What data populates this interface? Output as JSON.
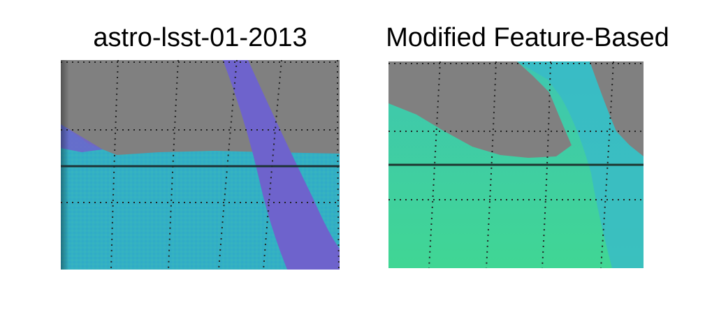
{
  "panels": [
    {
      "title": "astro-lsst-01-2013",
      "colors": {
        "masked": "#808080",
        "fill": "#33b0c4",
        "band": "#6e63cc",
        "equator_line": "#1e3236",
        "grid_dots": "#222222"
      }
    },
    {
      "title": "Modified Feature-Based",
      "colors": {
        "masked": "#808080",
        "fill_top": "#3fc6a8",
        "fill_bottom": "#40d694",
        "band": "#38b8cc",
        "equator_line": "#1e3630",
        "grid_dots": "#222222"
      }
    }
  ]
}
